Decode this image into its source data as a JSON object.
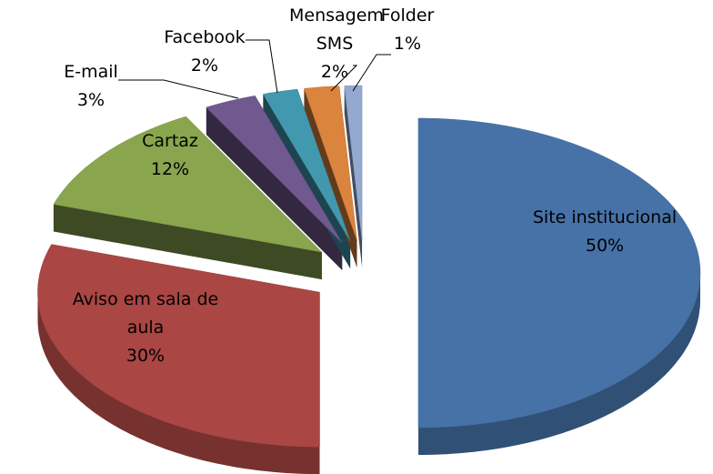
{
  "chart_data": {
    "type": "pie3d",
    "categories": [
      "Site institucional",
      "Aviso em sala de aula",
      "Cartaz",
      "E-mail",
      "Facebook",
      "Mensagem SMS",
      "Folder"
    ],
    "values": [
      50,
      30,
      12,
      3,
      2,
      2,
      1
    ],
    "value_labels": [
      "50%",
      "30%",
      "12%",
      "3%",
      "2%",
      "2%",
      "1%"
    ],
    "colors": [
      "#4672a8",
      "#aa4643",
      "#89a54e",
      "#71588f",
      "#4198af",
      "#db843d",
      "#93a9cf"
    ]
  }
}
